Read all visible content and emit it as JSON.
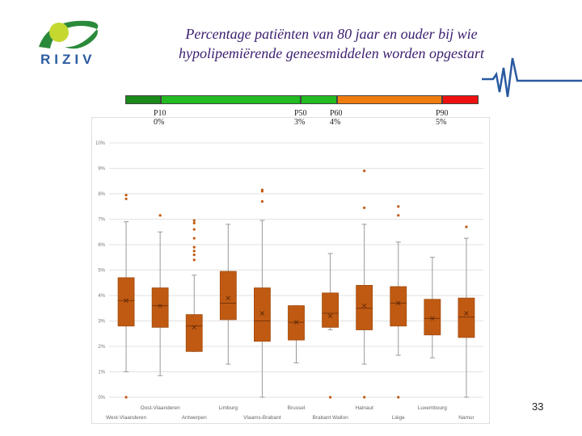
{
  "logo": {
    "text": "RIZIV",
    "colors": {
      "circle": "#c4d830",
      "swoosh": "#2a8a3a",
      "text": "#2a5aa0"
    }
  },
  "title": {
    "line1": "Percentage patiënten van 80 jaar en ouder bij wie",
    "line2": "hypolipemiërende geneesmiddelen worden opgestart"
  },
  "percentile_bar": {
    "segment_colors": [
      "#1a8a1a",
      "#22bb22",
      "#22bb22",
      "#f07c10",
      "#ee1111"
    ],
    "markers": [
      {
        "label": "P10",
        "value": "0%"
      },
      {
        "label": "P50",
        "value": "3%"
      },
      {
        "label": "P60",
        "value": "4%"
      },
      {
        "label": "P90",
        "value": "5%"
      }
    ]
  },
  "page_number": "33",
  "chart_data": {
    "type": "boxplot",
    "title": "",
    "xlabel": "",
    "ylabel": "",
    "ylim": [
      0,
      10
    ],
    "y_ticks": [
      "0%",
      "1%",
      "2%",
      "3%",
      "4%",
      "5%",
      "6%",
      "7%",
      "8%",
      "9%",
      "10%"
    ],
    "grid": true,
    "box_color": "#c05a12",
    "categories": [
      "West-Vlaanderen",
      "Oost-Vlaanderen",
      "Antwerpen",
      "Limburg",
      "Vlaams-Brabant",
      "Brussel",
      "Brabant Wallon",
      "Hainaut",
      "Liège",
      "Luxembourg",
      "Namur"
    ],
    "boxes": [
      {
        "min": 1.0,
        "q1": 2.8,
        "median": 3.8,
        "q3": 4.7,
        "max": 6.9,
        "mean": 3.8,
        "outliers": [
          0.0,
          7.8,
          7.95
        ]
      },
      {
        "min": 0.85,
        "q1": 2.75,
        "median": 3.6,
        "q3": 4.3,
        "max": 6.5,
        "mean": 3.6,
        "outliers": [
          7.15
        ]
      },
      {
        "min": 1.8,
        "q1": 1.8,
        "median": 2.8,
        "q3": 3.25,
        "max": 4.8,
        "mean": 2.75,
        "outliers": [
          5.4,
          5.6,
          5.75,
          5.9,
          6.25,
          6.6,
          6.85,
          6.95
        ]
      },
      {
        "min": 1.3,
        "q1": 3.05,
        "median": 3.7,
        "q3": 4.95,
        "max": 6.8,
        "mean": 3.9,
        "outliers": []
      },
      {
        "min": 0.0,
        "q1": 2.2,
        "median": 3.0,
        "q3": 4.3,
        "max": 6.95,
        "mean": 3.3,
        "outliers": [
          7.7,
          8.1,
          8.15
        ]
      },
      {
        "min": 1.35,
        "q1": 2.25,
        "median": 2.95,
        "q3": 3.6,
        "max": 3.6,
        "mean": 2.95,
        "outliers": []
      },
      {
        "min": 2.65,
        "q1": 2.75,
        "median": 3.3,
        "q3": 4.1,
        "max": 5.65,
        "mean": 3.2,
        "outliers": [
          0.0
        ]
      },
      {
        "min": 1.3,
        "q1": 2.65,
        "median": 3.5,
        "q3": 4.4,
        "max": 6.8,
        "mean": 3.6,
        "outliers": [
          0.0,
          7.45,
          8.9
        ]
      },
      {
        "min": 1.65,
        "q1": 2.8,
        "median": 3.7,
        "q3": 4.35,
        "max": 6.1,
        "mean": 3.7,
        "outliers": [
          0.0,
          7.15,
          7.5
        ]
      },
      {
        "min": 1.55,
        "q1": 2.45,
        "median": 3.1,
        "q3": 3.85,
        "max": 5.5,
        "mean": 3.1,
        "outliers": []
      },
      {
        "min": 0.0,
        "q1": 2.35,
        "median": 3.15,
        "q3": 3.9,
        "max": 6.25,
        "mean": 3.3,
        "outliers": [
          6.7
        ]
      }
    ]
  }
}
